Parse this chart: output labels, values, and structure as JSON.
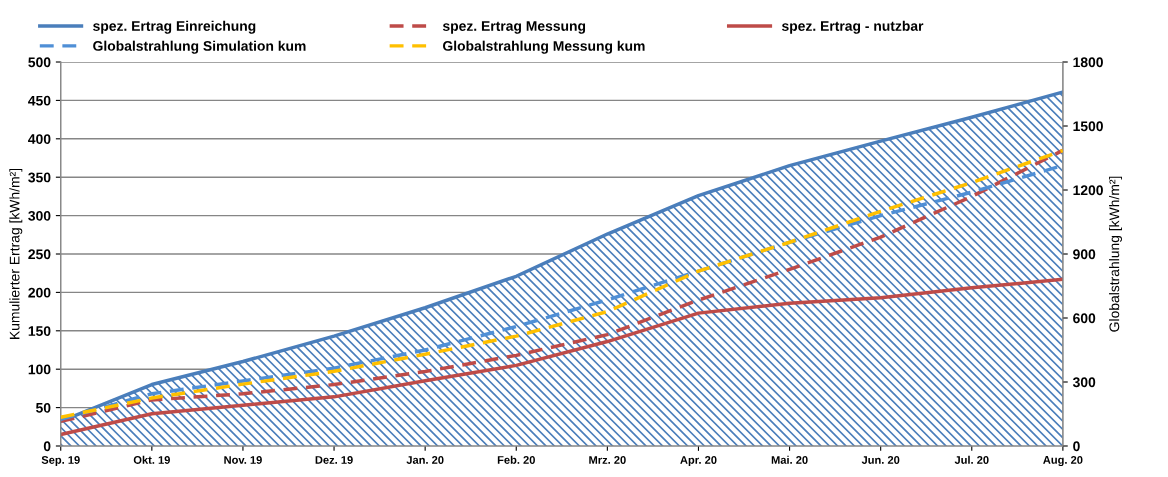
{
  "chart_data": {
    "type": "line",
    "categories": [
      "Sep. 19",
      "Okt. 19",
      "Nov. 19",
      "Dez. 19",
      "Jan. 20",
      "Feb. 20",
      "Mrz. 20",
      "Apr. 20",
      "Mai. 20",
      "Jun. 20",
      "Jul. 20",
      "Aug. 20"
    ],
    "series": [
      {
        "name": "spez. Ertrag Einreichung",
        "type": "area",
        "color": "#4a7ebb",
        "line_style": "solid",
        "values": [
          32,
          80,
          110,
          143,
          180,
          221,
          276,
          326,
          365,
          397,
          428,
          461
        ]
      },
      {
        "name": "spez. Ertrag Messung",
        "color": "#be4b48",
        "line_style": "dashed",
        "values": [
          32,
          60,
          68,
          80,
          97,
          118,
          145,
          190,
          230,
          272,
          325,
          385
        ]
      },
      {
        "name": "spez. Ertrag - nutzbar",
        "color": "#be4b48",
        "line_style": "solid",
        "values": [
          15,
          42,
          53,
          64,
          85,
          105,
          136,
          173,
          186,
          193,
          206,
          217
        ]
      },
      {
        "name": "Globalstrahlung Simulation kum",
        "axis": "y2",
        "color": "#4f8fd6",
        "line_style": "dashed",
        "values": [
          125,
          245,
          305,
          365,
          450,
          560,
          685,
          820,
          955,
          1080,
          1190,
          1315
        ]
      },
      {
        "name": "Globalstrahlung Messung kum",
        "axis": "y2",
        "color": "#ffc000",
        "line_style": "dashed",
        "values": [
          135,
          225,
          290,
          350,
          430,
          515,
          630,
          820,
          955,
          1100,
          1235,
          1385
        ]
      }
    ],
    "ylabel": "Kumulierter Ertrag [kWh/m²]",
    "y2label": "Globalstrahlung [kWh/m²]",
    "ylim": [
      0,
      500
    ],
    "yticks": [
      0,
      50,
      100,
      150,
      200,
      250,
      300,
      350,
      400,
      450,
      500
    ],
    "y2lim": [
      0,
      1800
    ],
    "y2ticks": [
      0,
      300,
      600,
      900,
      1200,
      1500,
      1800
    ],
    "grid": "y",
    "legend": "top",
    "marker": "none"
  }
}
